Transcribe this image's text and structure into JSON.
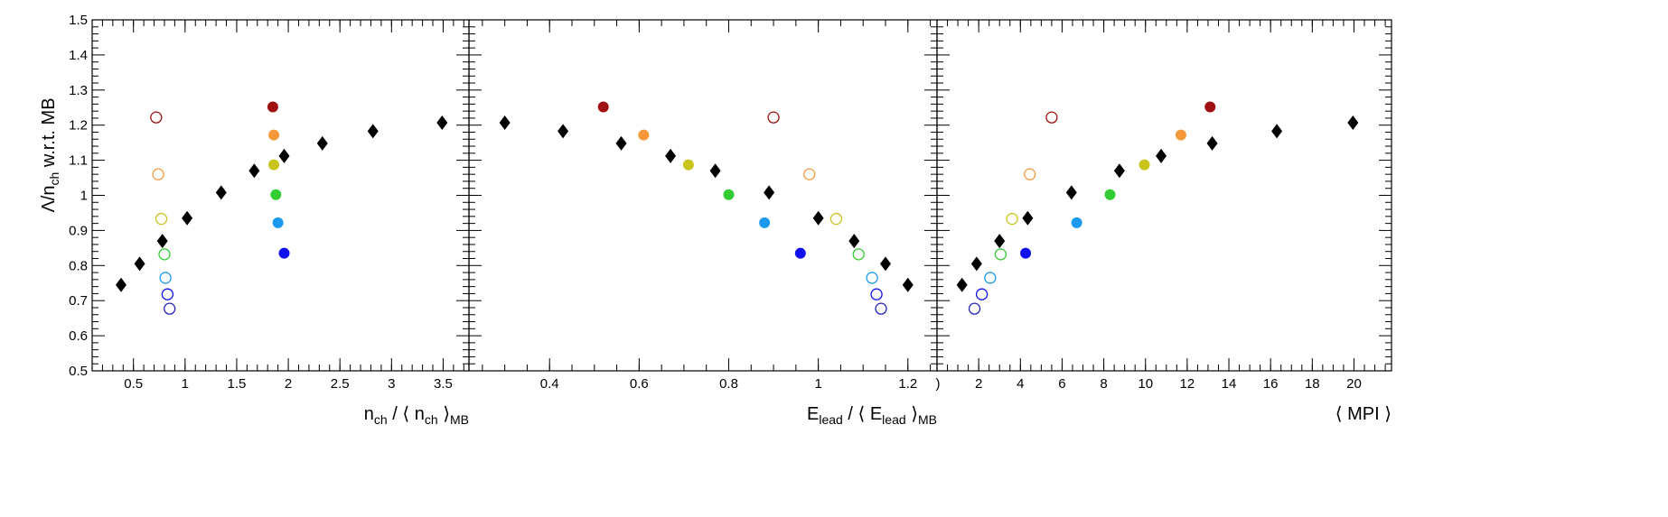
{
  "chart_data": {
    "type": "scatter",
    "ylabel": {
      "main": "Λ/n",
      "sub": "ch",
      "suffix": " w.r.t. MB"
    },
    "ylim": [
      0.5,
      1.5
    ],
    "yticks": [
      "0.5",
      "0.6",
      "0.7",
      "0.8",
      "0.9",
      "1",
      "1.1",
      "1.2",
      "1.3",
      "1.4",
      "1.5"
    ],
    "colors": {
      "black": "#000000",
      "darkred": "#a01010",
      "orange": "#f5993a",
      "olive": "#c8c41c",
      "green": "#33cc33",
      "lightblue": "#1a99ee",
      "blue": "#1010ee",
      "navy": "#2222bb"
    },
    "panels": [
      {
        "xlabel": {
          "p1": "n",
          "s1": "ch",
          "p2": " / ⟨ n",
          "s2": "ch",
          "p3": " ⟩",
          "s3": "MB"
        },
        "xlim": [
          0.1,
          3.75
        ],
        "xticks": [
          "0.5",
          "1",
          "1.5",
          "2",
          "2.5",
          "3",
          "3.5"
        ],
        "xtick_values": [
          0.5,
          1,
          1.5,
          2,
          2.5,
          3,
          3.5
        ],
        "minor_step": 0.1,
        "series": [
          {
            "marker": "diamond",
            "color": "black",
            "points": [
              [
                0.38,
                0.745
              ],
              [
                0.56,
                0.805
              ],
              [
                0.78,
                0.87
              ],
              [
                1.02,
                0.935
              ],
              [
                1.35,
                1.008
              ],
              [
                1.67,
                1.07
              ],
              [
                1.96,
                1.112
              ],
              [
                2.33,
                1.148
              ],
              [
                2.82,
                1.183
              ],
              [
                3.49,
                1.207
              ]
            ]
          },
          {
            "marker": "filled-circle",
            "color": "darkred",
            "points": [
              [
                1.85,
                1.252
              ]
            ]
          },
          {
            "marker": "filled-circle",
            "color": "orange",
            "points": [
              [
                1.86,
                1.172
              ]
            ]
          },
          {
            "marker": "filled-circle",
            "color": "olive",
            "points": [
              [
                1.86,
                1.087
              ]
            ]
          },
          {
            "marker": "filled-circle",
            "color": "green",
            "points": [
              [
                1.88,
                1.002
              ]
            ]
          },
          {
            "marker": "filled-circle",
            "color": "lightblue",
            "points": [
              [
                1.9,
                0.922
              ]
            ]
          },
          {
            "marker": "filled-circle",
            "color": "blue",
            "points": [
              [
                1.96,
                0.835
              ]
            ]
          },
          {
            "marker": "open-circle",
            "color": "darkred",
            "points": [
              [
                0.72,
                1.222
              ]
            ]
          },
          {
            "marker": "open-circle",
            "color": "orange",
            "points": [
              [
                0.74,
                1.06
              ]
            ]
          },
          {
            "marker": "open-circle",
            "color": "olive",
            "points": [
              [
                0.77,
                0.933
              ]
            ]
          },
          {
            "marker": "open-circle",
            "color": "green",
            "points": [
              [
                0.8,
                0.832
              ]
            ]
          },
          {
            "marker": "open-circle",
            "color": "lightblue",
            "points": [
              [
                0.81,
                0.765
              ]
            ]
          },
          {
            "marker": "open-circle",
            "color": "blue",
            "points": [
              [
                0.83,
                0.718
              ]
            ]
          },
          {
            "marker": "open-circle",
            "color": "navy",
            "points": [
              [
                0.85,
                0.677
              ]
            ]
          }
        ]
      },
      {
        "xlabel": {
          "p1": "E",
          "s1": "lead",
          "p2": " / ⟨ E",
          "s2": "lead",
          "p3": " ⟩",
          "s3": "MB"
        },
        "xlim": [
          0.22,
          1.265
        ],
        "xticks": [
          "0.4",
          "0.6",
          "0.8",
          "1",
          "1.2"
        ],
        "xtick_values": [
          0.4,
          0.6,
          0.8,
          1.0,
          1.2
        ],
        "minor_step": 0.05,
        "series": [
          {
            "marker": "diamond",
            "color": "black",
            "points": [
              [
                0.3,
                1.207
              ],
              [
                0.43,
                1.183
              ],
              [
                0.56,
                1.148
              ],
              [
                0.67,
                1.112
              ],
              [
                0.77,
                1.07
              ],
              [
                0.89,
                1.008
              ],
              [
                1.0,
                0.935
              ],
              [
                1.08,
                0.87
              ],
              [
                1.15,
                0.805
              ],
              [
                1.2,
                0.745
              ]
            ]
          },
          {
            "marker": "filled-circle",
            "color": "darkred",
            "points": [
              [
                0.52,
                1.252
              ]
            ]
          },
          {
            "marker": "filled-circle",
            "color": "orange",
            "points": [
              [
                0.61,
                1.172
              ]
            ]
          },
          {
            "marker": "filled-circle",
            "color": "olive",
            "points": [
              [
                0.71,
                1.087
              ]
            ]
          },
          {
            "marker": "filled-circle",
            "color": "green",
            "points": [
              [
                0.8,
                1.002
              ]
            ]
          },
          {
            "marker": "filled-circle",
            "color": "lightblue",
            "points": [
              [
                0.88,
                0.922
              ]
            ]
          },
          {
            "marker": "filled-circle",
            "color": "blue",
            "points": [
              [
                0.96,
                0.835
              ]
            ]
          },
          {
            "marker": "open-circle",
            "color": "darkred",
            "points": [
              [
                0.9,
                1.222
              ]
            ]
          },
          {
            "marker": "open-circle",
            "color": "orange",
            "points": [
              [
                0.98,
                1.06
              ]
            ]
          },
          {
            "marker": "open-circle",
            "color": "olive",
            "points": [
              [
                1.04,
                0.933
              ]
            ]
          },
          {
            "marker": "open-circle",
            "color": "green",
            "points": [
              [
                1.09,
                0.832
              ]
            ]
          },
          {
            "marker": "open-circle",
            "color": "lightblue",
            "points": [
              [
                1.12,
                0.765
              ]
            ]
          },
          {
            "marker": "open-circle",
            "color": "blue",
            "points": [
              [
                1.13,
                0.718
              ]
            ]
          },
          {
            "marker": "open-circle",
            "color": "navy",
            "points": [
              [
                1.14,
                0.677
              ]
            ]
          }
        ]
      },
      {
        "xlabel": {
          "p1": "⟨ MPI ⟩"
        },
        "xlim": [
          0,
          21.8
        ],
        "xticks": [
          "2",
          "4",
          "6",
          "8",
          "10",
          "12",
          "14",
          "16",
          "18",
          "20"
        ],
        "xtick_values": [
          2,
          4,
          6,
          8,
          10,
          12,
          14,
          16,
          18,
          20
        ],
        "minor_step": 0.5,
        "edge_label": ")",
        "series": [
          {
            "marker": "diamond",
            "color": "black",
            "points": [
              [
                1.2,
                0.745
              ],
              [
                1.9,
                0.805
              ],
              [
                3.0,
                0.87
              ],
              [
                4.35,
                0.935
              ],
              [
                6.45,
                1.008
              ],
              [
                8.75,
                1.07
              ],
              [
                10.75,
                1.112
              ],
              [
                13.2,
                1.148
              ],
              [
                16.3,
                1.183
              ],
              [
                19.95,
                1.207
              ]
            ]
          },
          {
            "marker": "filled-circle",
            "color": "darkred",
            "points": [
              [
                13.1,
                1.252
              ]
            ]
          },
          {
            "marker": "filled-circle",
            "color": "orange",
            "points": [
              [
                11.7,
                1.172
              ]
            ]
          },
          {
            "marker": "filled-circle",
            "color": "olive",
            "points": [
              [
                9.95,
                1.087
              ]
            ]
          },
          {
            "marker": "filled-circle",
            "color": "green",
            "points": [
              [
                8.3,
                1.002
              ]
            ]
          },
          {
            "marker": "filled-circle",
            "color": "lightblue",
            "points": [
              [
                6.7,
                0.922
              ]
            ]
          },
          {
            "marker": "filled-circle",
            "color": "blue",
            "points": [
              [
                4.25,
                0.835
              ]
            ]
          },
          {
            "marker": "open-circle",
            "color": "darkred",
            "points": [
              [
                5.5,
                1.222
              ]
            ]
          },
          {
            "marker": "open-circle",
            "color": "orange",
            "points": [
              [
                4.45,
                1.06
              ]
            ]
          },
          {
            "marker": "open-circle",
            "color": "olive",
            "points": [
              [
                3.6,
                0.933
              ]
            ]
          },
          {
            "marker": "open-circle",
            "color": "green",
            "points": [
              [
                3.05,
                0.832
              ]
            ]
          },
          {
            "marker": "open-circle",
            "color": "lightblue",
            "points": [
              [
                2.55,
                0.765
              ]
            ]
          },
          {
            "marker": "open-circle",
            "color": "blue",
            "points": [
              [
                2.15,
                0.718
              ]
            ]
          },
          {
            "marker": "open-circle",
            "color": "navy",
            "points": [
              [
                1.8,
                0.677
              ]
            ]
          }
        ]
      }
    ]
  }
}
